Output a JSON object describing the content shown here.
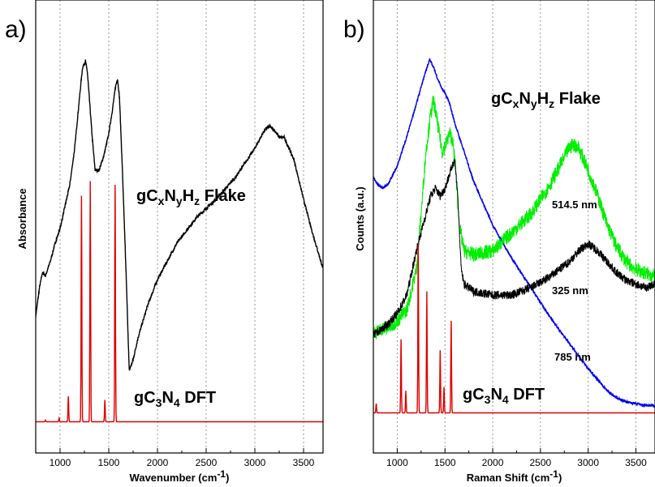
{
  "chart_data": [
    {
      "type": "line",
      "panel_label": "a)",
      "xlabel": "Wavenumber (cm",
      "xlabel_sup": "-1",
      "xlabel_end": ")",
      "ylabel": "Absorbance",
      "xlim": [
        750,
        3700
      ],
      "xticks": [
        1000,
        1500,
        2000,
        2500,
        3000,
        3500
      ],
      "grid": "vertical dotted",
      "annotations": [
        {
          "id": "flake",
          "parts": [
            "gC",
            "x",
            "N",
            "y",
            "H",
            "z",
            " Flake"
          ]
        },
        {
          "id": "dft",
          "parts": [
            "gC",
            "3",
            "N",
            "4",
            " DFT"
          ]
        }
      ],
      "series": [
        {
          "color": "#000000",
          "x": [
            750,
            790,
            820,
            850,
            900,
            950,
            1000,
            1050,
            1100,
            1150,
            1200,
            1230,
            1260,
            1280,
            1300,
            1330,
            1360,
            1400,
            1450,
            1500,
            1540,
            1570,
            1590,
            1610,
            1640,
            1680,
            1710,
            1750,
            1800,
            1900,
            2000,
            2100,
            2200,
            2400,
            2600,
            2800,
            3000,
            3100,
            3150,
            3200,
            3250,
            3300,
            3400,
            3500,
            3600,
            3700
          ],
          "y": [
            0.3,
            0.38,
            0.42,
            0.41,
            0.45,
            0.5,
            0.54,
            0.6,
            0.66,
            0.76,
            0.9,
            0.98,
            1.0,
            0.97,
            0.9,
            0.79,
            0.7,
            0.7,
            0.74,
            0.8,
            0.87,
            0.93,
            0.95,
            0.9,
            0.7,
            0.4,
            0.15,
            0.18,
            0.24,
            0.33,
            0.4,
            0.45,
            0.5,
            0.57,
            0.62,
            0.68,
            0.76,
            0.81,
            0.82,
            0.81,
            0.79,
            0.79,
            0.73,
            0.62,
            0.52,
            0.43
          ]
        },
        {
          "color": "#e00000",
          "kind": "sticks",
          "baseline": 0.01,
          "peaks": [
            {
              "x": 850,
              "h": 0.005
            },
            {
              "x": 990,
              "h": 0.01
            },
            {
              "x": 1085,
              "h": 0.07
            },
            {
              "x": 1220,
              "h": 0.62
            },
            {
              "x": 1310,
              "h": 0.66
            },
            {
              "x": 1460,
              "h": 0.06
            },
            {
              "x": 1565,
              "h": 0.65
            }
          ]
        }
      ]
    },
    {
      "type": "line",
      "panel_label": "b)",
      "xlabel": "Raman Shift (cm",
      "xlabel_sup": "-1",
      "xlabel_end": ")",
      "ylabel": "Counts (a.u.)",
      "xlim": [
        750,
        3700
      ],
      "xticks": [
        1000,
        1500,
        2000,
        2500,
        3000,
        3500
      ],
      "grid": "vertical dotted",
      "annotations": [
        {
          "id": "flake",
          "parts": [
            "gC",
            "x",
            "N",
            "y",
            "H",
            "z",
            " Flake"
          ]
        },
        {
          "id": "dft",
          "parts": [
            "gC",
            "3",
            "N",
            "4",
            " DFT"
          ]
        },
        {
          "id": "l514",
          "text": "514.5 nm"
        },
        {
          "id": "l325",
          "text": "325 nm"
        },
        {
          "id": "l785",
          "text": "785 nm"
        }
      ],
      "series": [
        {
          "name": "785 nm",
          "color": "#0000ee",
          "x": [
            750,
            800,
            850,
            900,
            1000,
            1100,
            1200,
            1300,
            1340,
            1380,
            1420,
            1470,
            1500,
            1550,
            1600,
            1700,
            1800,
            2000,
            2200,
            2400,
            2600,
            2800,
            3000,
            3100,
            3200,
            3300,
            3400,
            3500,
            3600,
            3700
          ],
          "y": [
            0.65,
            0.63,
            0.62,
            0.63,
            0.68,
            0.76,
            0.85,
            0.94,
            0.97,
            0.95,
            0.92,
            0.89,
            0.88,
            0.85,
            0.8,
            0.72,
            0.64,
            0.52,
            0.43,
            0.35,
            0.27,
            0.2,
            0.13,
            0.1,
            0.07,
            0.05,
            0.04,
            0.035,
            0.03,
            0.03
          ]
        },
        {
          "name": "514.5 nm",
          "color": "#00ee00",
          "x": [
            750,
            800,
            850,
            900,
            1000,
            1100,
            1200,
            1250,
            1300,
            1350,
            1380,
            1420,
            1470,
            1510,
            1550,
            1580,
            1610,
            1650,
            1700,
            1800,
            2000,
            2200,
            2400,
            2600,
            2700,
            2800,
            2850,
            2900,
            3000,
            3100,
            3200,
            3300,
            3400,
            3500,
            3600,
            3700
          ],
          "y": [
            0.23,
            0.23,
            0.24,
            0.24,
            0.26,
            0.29,
            0.4,
            0.55,
            0.72,
            0.82,
            0.86,
            0.8,
            0.72,
            0.74,
            0.77,
            0.75,
            0.68,
            0.52,
            0.45,
            0.44,
            0.45,
            0.5,
            0.55,
            0.63,
            0.68,
            0.73,
            0.74,
            0.73,
            0.67,
            0.6,
            0.52,
            0.46,
            0.42,
            0.4,
            0.39,
            0.38
          ]
        },
        {
          "name": "325 nm",
          "color": "#000000",
          "x": [
            750,
            800,
            850,
            900,
            1000,
            1100,
            1200,
            1250,
            1300,
            1350,
            1400,
            1450,
            1500,
            1550,
            1600,
            1630,
            1670,
            1700,
            1800,
            2000,
            2200,
            2400,
            2600,
            2800,
            2900,
            3000,
            3100,
            3200,
            3300,
            3400,
            3500,
            3600,
            3700
          ],
          "y": [
            0.22,
            0.23,
            0.24,
            0.25,
            0.28,
            0.33,
            0.45,
            0.5,
            0.55,
            0.6,
            0.62,
            0.6,
            0.62,
            0.66,
            0.7,
            0.62,
            0.4,
            0.36,
            0.34,
            0.33,
            0.33,
            0.35,
            0.38,
            0.42,
            0.45,
            0.47,
            0.45,
            0.42,
            0.39,
            0.37,
            0.36,
            0.35,
            0.36
          ]
        },
        {
          "color": "#e00000",
          "kind": "sticks",
          "baseline": 0.01,
          "peaks": [
            {
              "x": 780,
              "h": 0.025
            },
            {
              "x": 1040,
              "h": 0.2
            },
            {
              "x": 1090,
              "h": 0.06
            },
            {
              "x": 1220,
              "h": 0.46
            },
            {
              "x": 1310,
              "h": 0.33
            },
            {
              "x": 1450,
              "h": 0.17
            },
            {
              "x": 1490,
              "h": 0.07
            },
            {
              "x": 1565,
              "h": 0.25
            }
          ]
        }
      ]
    }
  ]
}
